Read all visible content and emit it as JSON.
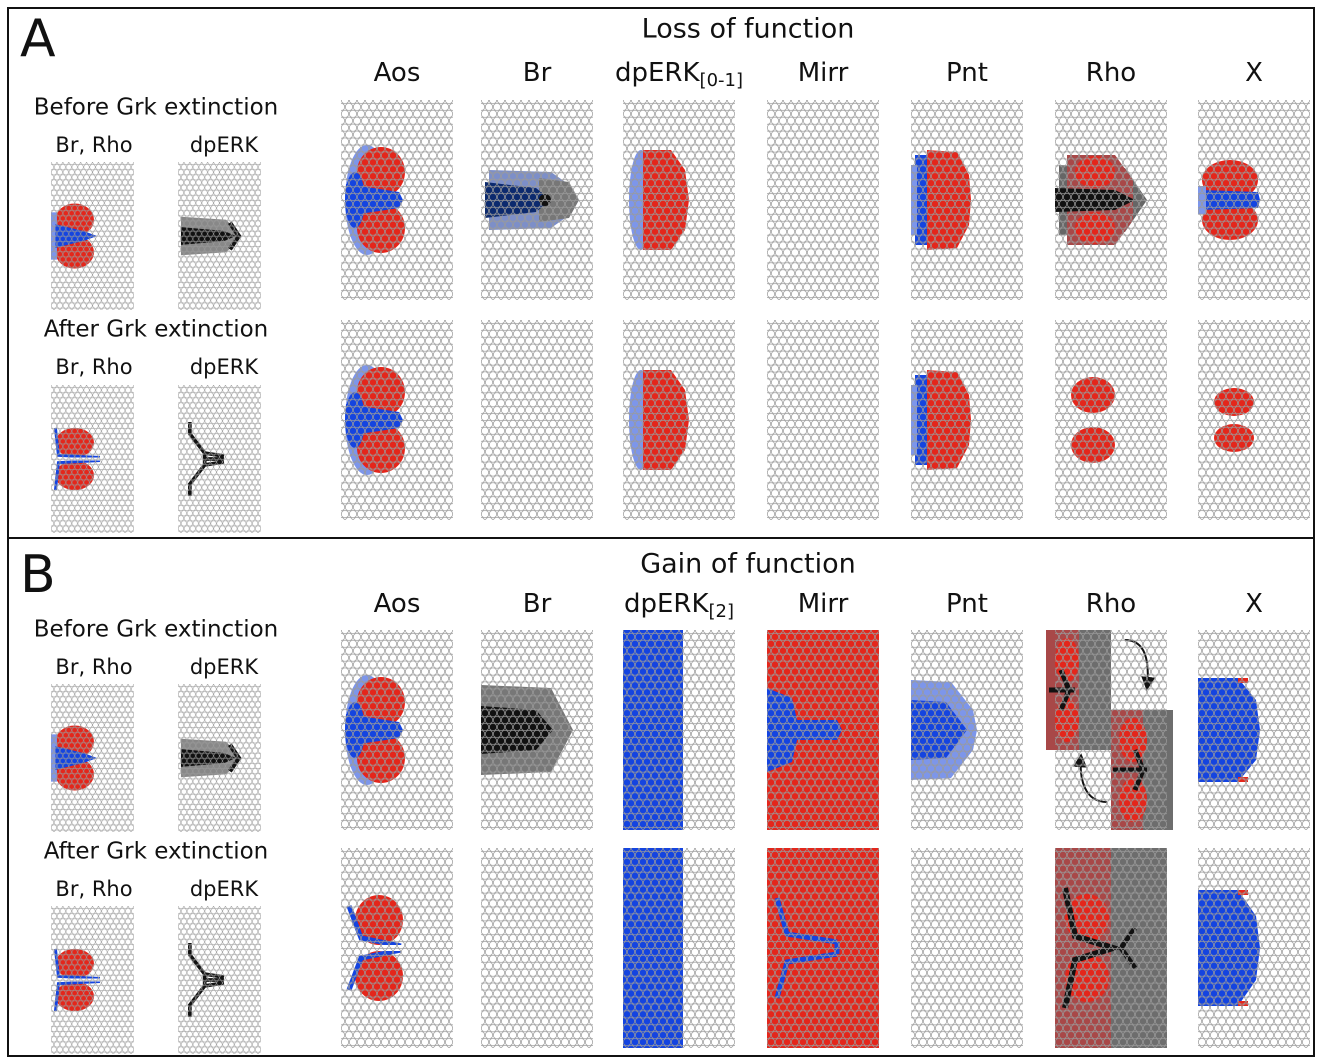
{
  "panels": [
    {
      "letter": "A",
      "title": "Loss of function",
      "columns": [
        {
          "label": "Aos"
        },
        {
          "label": "Br"
        },
        {
          "label": "dpERK",
          "subscript": "[0-1]"
        },
        {
          "label": "Mirr"
        },
        {
          "label": "Pnt"
        },
        {
          "label": "Rho"
        },
        {
          "label": "X"
        }
      ],
      "before": {
        "title": "Before Grk extinction",
        "labels": [
          "Br, Rho",
          "dpERK"
        ]
      },
      "after": {
        "title": "After Grk extinction",
        "labels": [
          "Br, Rho",
          "dpERK"
        ]
      }
    },
    {
      "letter": "B",
      "title": "Gain of function",
      "columns": [
        {
          "label": "Aos"
        },
        {
          "label": "Br"
        },
        {
          "label": "dpERK",
          "subscript": "[2]"
        },
        {
          "label": "Mirr"
        },
        {
          "label": "Pnt"
        },
        {
          "label": "Rho"
        },
        {
          "label": "X"
        }
      ],
      "before": {
        "title": "Before Grk extinction",
        "labels": [
          "Br, Rho",
          "dpERK"
        ]
      },
      "after": {
        "title": "After Grk extinction",
        "labels": [
          "Br, Rho",
          "dpERK"
        ]
      }
    }
  ]
}
